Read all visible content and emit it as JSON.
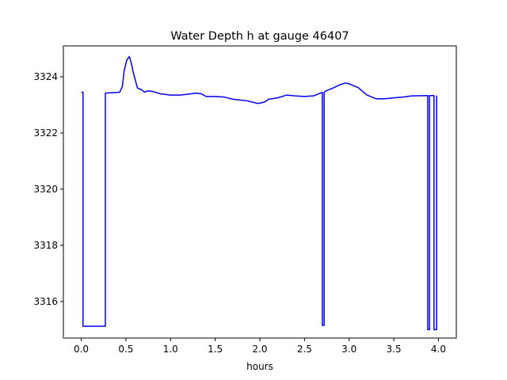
{
  "chart_data": {
    "type": "line",
    "title": "Water Depth h at gauge 46407",
    "xlabel": "hours",
    "ylabel": "",
    "xlim": [
      -0.2,
      4.2
    ],
    "ylim": [
      3314.7,
      3325.1
    ],
    "xticks": [
      0.0,
      0.5,
      1.0,
      1.5,
      2.0,
      2.5,
      3.0,
      3.5,
      4.0
    ],
    "xtick_labels": [
      "0.0",
      "0.5",
      "1.0",
      "1.5",
      "2.0",
      "2.5",
      "3.0",
      "3.5",
      "4.0"
    ],
    "yticks": [
      3316,
      3318,
      3320,
      3322,
      3324
    ],
    "ytick_labels": [
      "3316",
      "3318",
      "3320",
      "3322",
      "3324"
    ],
    "grid": false,
    "series": [
      {
        "color": "#0000ff",
        "x": [
          0.0,
          0.02,
          0.02,
          0.27,
          0.27,
          0.43,
          0.46,
          0.48,
          0.51,
          0.54,
          0.56,
          0.58,
          0.6,
          0.63,
          0.67,
          0.71,
          0.74,
          0.8,
          0.88,
          1.0,
          1.1,
          1.2,
          1.28,
          1.34,
          1.4,
          1.5,
          1.6,
          1.7,
          1.85,
          1.98,
          2.05,
          2.1,
          2.2,
          2.3,
          2.4,
          2.5,
          2.6,
          2.68,
          2.7,
          2.7,
          2.72,
          2.72,
          2.74,
          2.82,
          2.9,
          2.96,
          3.0,
          3.1,
          3.2,
          3.3,
          3.4,
          3.5,
          3.6,
          3.7,
          3.88,
          3.88,
          3.9,
          3.9,
          3.95,
          3.95,
          3.98,
          3.98
        ],
        "y": [
          3323.45,
          3323.45,
          3315.12,
          3315.12,
          3323.42,
          3323.45,
          3323.65,
          3324.2,
          3324.6,
          3324.72,
          3324.5,
          3324.2,
          3323.95,
          3323.6,
          3323.55,
          3323.45,
          3323.5,
          3323.48,
          3323.4,
          3323.35,
          3323.35,
          3323.38,
          3323.42,
          3323.4,
          3323.3,
          3323.3,
          3323.28,
          3323.2,
          3323.15,
          3323.05,
          3323.1,
          3323.2,
          3323.25,
          3323.35,
          3323.32,
          3323.3,
          3323.32,
          3323.42,
          3323.45,
          3315.15,
          3315.15,
          3323.45,
          3323.5,
          3323.6,
          3323.72,
          3323.78,
          3323.75,
          3323.62,
          3323.35,
          3323.22,
          3323.22,
          3323.25,
          3323.28,
          3323.32,
          3323.33,
          3315.0,
          3315.0,
          3323.33,
          3323.33,
          3315.0,
          3315.0,
          3323.33
        ]
      }
    ]
  }
}
